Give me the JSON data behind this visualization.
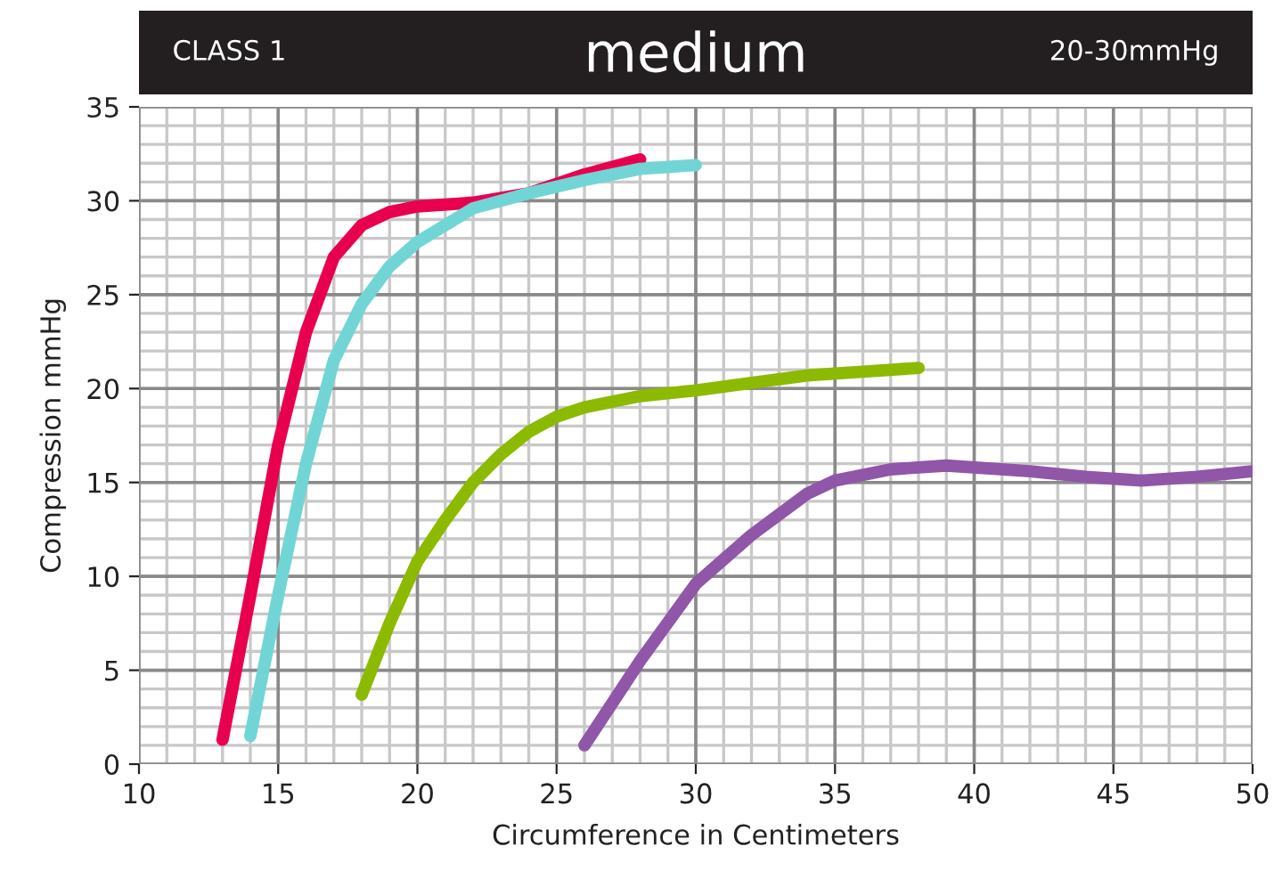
{
  "chart_data": {
    "type": "line",
    "title": "medium",
    "annotations": [
      "CLASS 1",
      "20-30mmHg"
    ],
    "xlabel": "Circumference in Centimeters",
    "ylabel": "Compression mmHg",
    "xlim": [
      10,
      50
    ],
    "xticks": [
      10,
      15,
      20,
      25,
      30,
      35,
      40,
      45,
      50
    ],
    "ylim": [
      0,
      35
    ],
    "yticks": [
      0,
      5,
      10,
      15,
      20,
      25,
      30,
      35
    ],
    "grid": true,
    "marker": "none",
    "line_style": "solid",
    "series": [
      {
        "color": "#e8004f",
        "x": [
          13,
          14,
          15,
          16,
          17,
          18,
          19,
          20,
          22,
          24,
          26,
          28
        ],
        "values": [
          1.3,
          9,
          17,
          23,
          27,
          28.7,
          29.4,
          29.7,
          29.9,
          30.4,
          31.4,
          32.2
        ]
      },
      {
        "color": "#72d5d5",
        "x": [
          14,
          15,
          16,
          17,
          18,
          19,
          20,
          22,
          24,
          26,
          28,
          30
        ],
        "values": [
          1.5,
          9,
          16,
          21.5,
          24.5,
          26.5,
          27.8,
          29.6,
          30.4,
          31.1,
          31.7,
          31.9
        ]
      },
      {
        "color": "#8cba00",
        "x": [
          18,
          19,
          20,
          21,
          22,
          23,
          24,
          25,
          26,
          28,
          30,
          32,
          34,
          36,
          38
        ],
        "values": [
          3.7,
          7.5,
          10.8,
          13,
          15,
          16.5,
          17.7,
          18.5,
          19,
          19.6,
          19.9,
          20.3,
          20.7,
          20.9,
          21.1
        ]
      },
      {
        "color": "#9056a8",
        "x": [
          26,
          28,
          30,
          32,
          34,
          35,
          37,
          39,
          42,
          44,
          46,
          48,
          50
        ],
        "values": [
          1,
          5.5,
          9.6,
          12.2,
          14.4,
          15.1,
          15.7,
          15.9,
          15.6,
          15.3,
          15.1,
          15.3,
          15.6
        ]
      }
    ]
  }
}
